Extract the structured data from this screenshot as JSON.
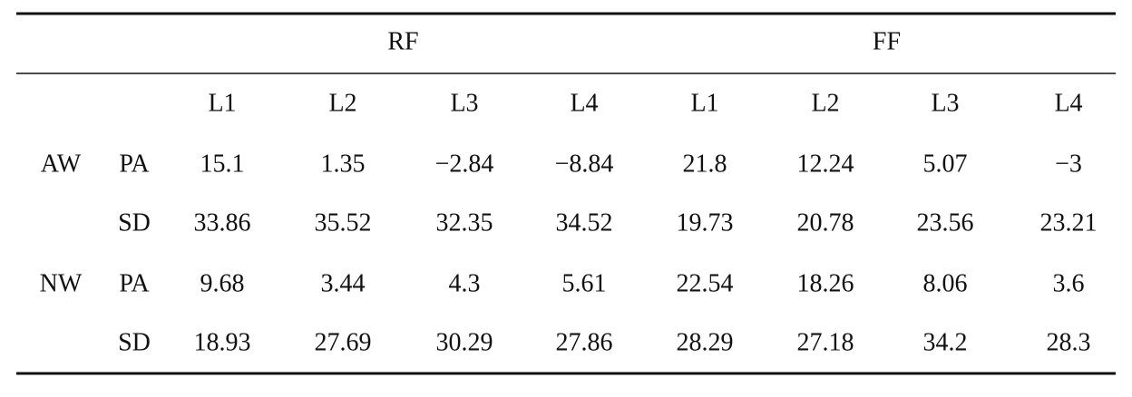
{
  "table": {
    "groups": [
      "RF",
      "FF"
    ],
    "levels": [
      "L1",
      "L2",
      "L3",
      "L4",
      "L1",
      "L2",
      "L3",
      "L4"
    ],
    "rows": [
      {
        "group": "AW",
        "measure": "PA",
        "values": [
          "15.1",
          "1.35",
          "−2.84",
          "−8.84",
          "21.8",
          "12.24",
          "5.07",
          "−3"
        ]
      },
      {
        "measure": "SD",
        "values": [
          "33.86",
          "35.52",
          "32.35",
          "34.52",
          "19.73",
          "20.78",
          "23.56",
          "23.21"
        ]
      },
      {
        "group": "NW",
        "measure": "PA",
        "values": [
          "9.68",
          "3.44",
          "4.3",
          "5.61",
          "22.54",
          "18.26",
          "8.06",
          "3.6"
        ]
      },
      {
        "measure": "SD",
        "values": [
          "18.93",
          "27.69",
          "30.29",
          "27.86",
          "28.29",
          "27.18",
          "34.2",
          "28.3"
        ]
      }
    ]
  }
}
